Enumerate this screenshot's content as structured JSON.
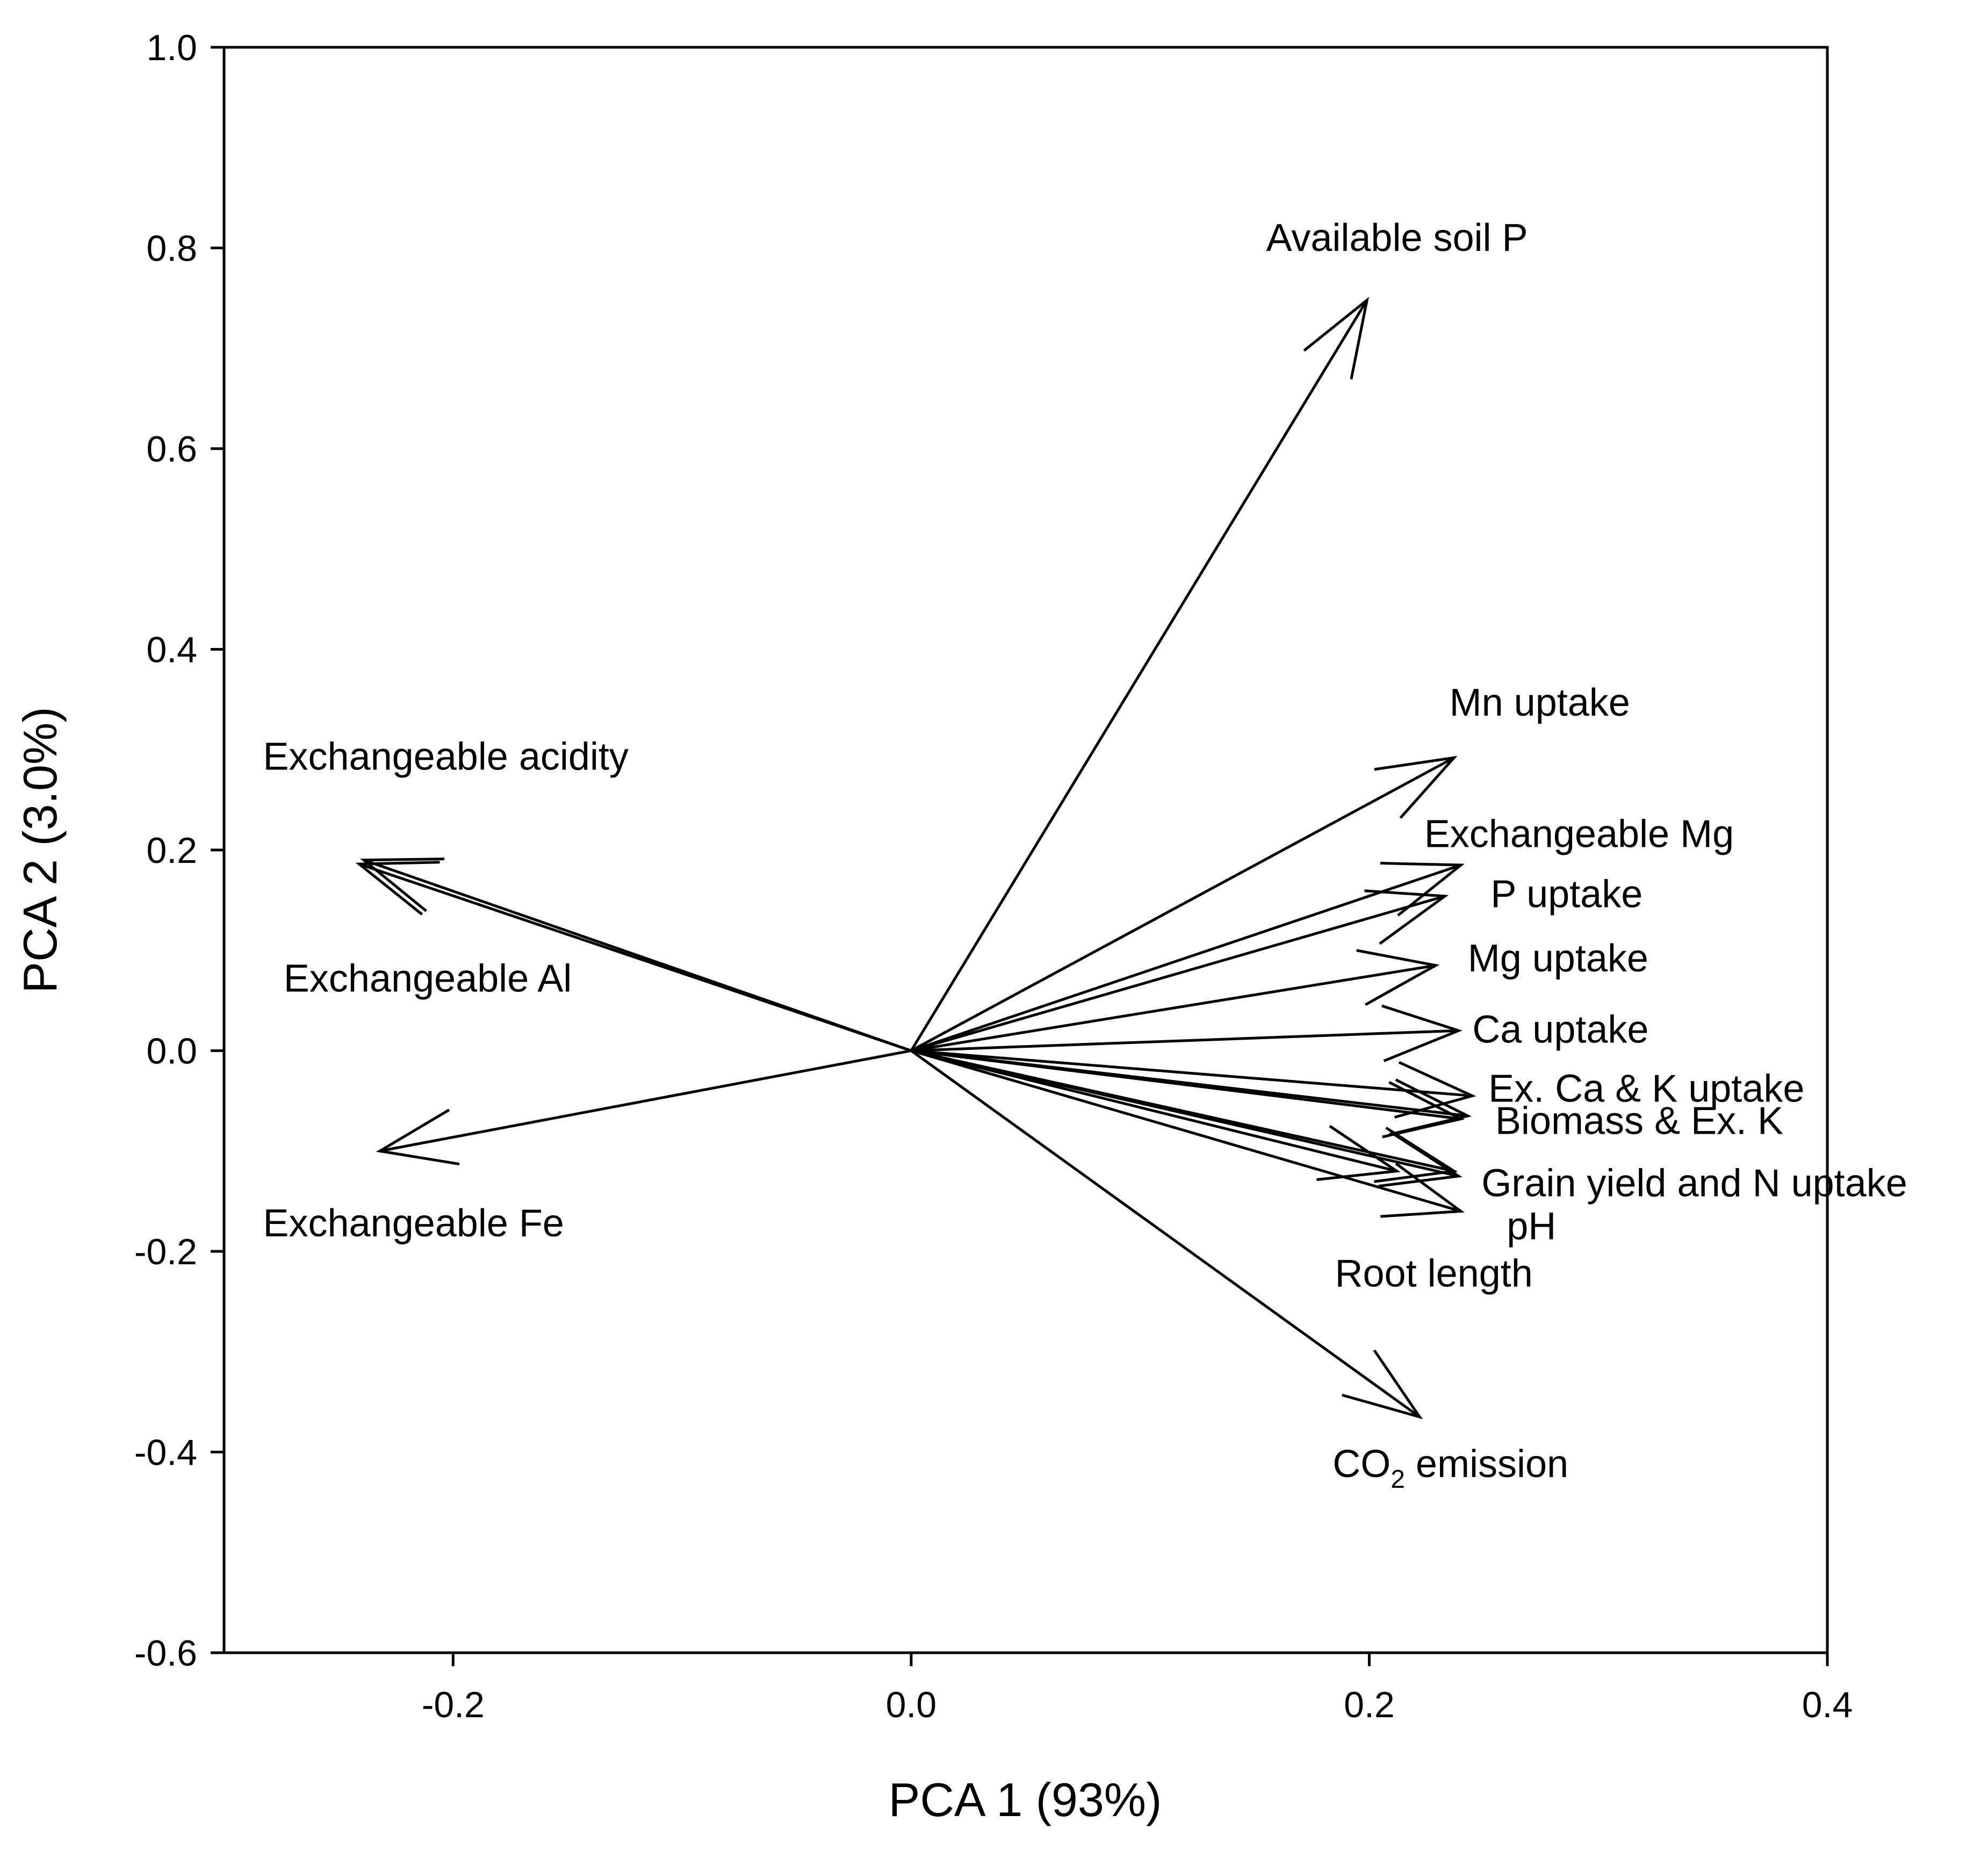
{
  "chart_data": {
    "type": "biplot",
    "title": "",
    "xlabel": "PCA 1 (93%)",
    "ylabel": "PCA 2 (3.0%)",
    "xlim": [
      -0.3,
      0.4
    ],
    "ylim": [
      -0.6,
      1.0
    ],
    "xticks": [
      "-0.2",
      "0.0",
      "0.2",
      "0.4"
    ],
    "yticks": [
      "1.0",
      "0.8",
      "0.6",
      "0.4",
      "0.2",
      "0.0",
      "-0.2",
      "-0.4",
      "-0.6"
    ],
    "xtick_values": [
      -0.2,
      0.0,
      0.2,
      0.4
    ],
    "ytick_values": [
      1.0,
      0.8,
      0.6,
      0.4,
      0.2,
      0.0,
      -0.2,
      -0.4,
      -0.6
    ],
    "grid": false,
    "vectors": [
      {
        "name": "Available soil P",
        "x": 0.199,
        "y": 0.748
      },
      {
        "name": "Mn uptake",
        "x": 0.237,
        "y": 0.292
      },
      {
        "name": "Exchangeable Mg",
        "x": 0.24,
        "y": 0.185
      },
      {
        "name": "P uptake",
        "x": 0.233,
        "y": 0.154
      },
      {
        "name": "Mg uptake",
        "x": 0.229,
        "y": 0.085
      },
      {
        "name": "Ca uptake",
        "x": 0.239,
        "y": 0.02
      },
      {
        "name": "Ex. Ca & K uptake",
        "x": 0.245,
        "y": -0.045
      },
      {
        "name": "Biomass",
        "x": 0.243,
        "y": -0.065
      },
      {
        "name": "Ex. K",
        "x": 0.24,
        "y": -0.068
      },
      {
        "name": "Grain yield",
        "x": 0.239,
        "y": -0.125
      },
      {
        "name": "N uptake",
        "x": 0.237,
        "y": -0.12
      },
      {
        "name": "pH",
        "x": 0.24,
        "y": -0.16
      },
      {
        "name": "Root length",
        "x": 0.212,
        "y": -0.12
      },
      {
        "name": "CO2 emission",
        "x": 0.222,
        "y": -0.365
      },
      {
        "name": "Exchangeable acidity",
        "x": -0.239,
        "y": 0.19
      },
      {
        "name": "Exchangeable Al",
        "x": -0.241,
        "y": 0.186
      },
      {
        "name": "Exchangeable Fe",
        "x": -0.232,
        "y": -0.1
      }
    ],
    "labels": [
      {
        "text": "Available soil P",
        "x": 0.155,
        "y": 0.797
      },
      {
        "text": "Mn uptake",
        "x": 0.235,
        "y": 0.334
      },
      {
        "text": "Exchangeable Mg",
        "x": 0.224,
        "y": 0.203
      },
      {
        "text": "P uptake",
        "x": 0.253,
        "y": 0.143
      },
      {
        "text": "Mg uptake",
        "x": 0.243,
        "y": 0.079
      },
      {
        "text": "Ca uptake",
        "x": 0.245,
        "y": 0.008
      },
      {
        "text": "Ex. Ca & K uptake",
        "x": 0.252,
        "y": -0.051
      },
      {
        "text": "Biomass & Ex. K",
        "x": 0.255,
        "y": -0.083
      },
      {
        "text": "Grain yield and N uptake",
        "x": 0.249,
        "y": -0.145
      },
      {
        "text": "pH",
        "x": 0.26,
        "y": -0.188
      },
      {
        "text": "Root length",
        "x": 0.185,
        "y": -0.235
      },
      {
        "text": "CO",
        "sub": "2",
        "tail": " emission",
        "x": 0.184,
        "y": -0.425
      },
      {
        "text": "Exchangeable acidity",
        "x": -0.283,
        "y": 0.28
      },
      {
        "text": "Exchangeable Al",
        "x": -0.274,
        "y": 0.059
      },
      {
        "text": "Exchangeable Fe",
        "x": -0.283,
        "y": -0.185
      }
    ]
  }
}
